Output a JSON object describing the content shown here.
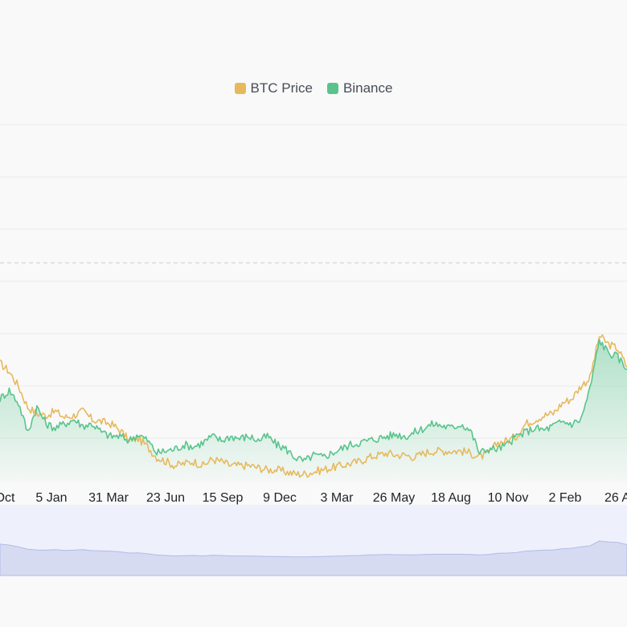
{
  "chart_data": {
    "type": "line",
    "legend": {
      "placement": "top-center",
      "entries": [
        {
          "name": "BTC Price",
          "color": "#e6b95c"
        },
        {
          "name": "Binance",
          "color": "#58c48c"
        }
      ]
    },
    "grid": true,
    "x_ticks": [
      "Oct",
      "5 Jan",
      "31 Mar",
      "23 Jun",
      "15 Sep",
      "9 Dec",
      "3 Mar",
      "26 May",
      "18 Aug",
      "10 Nov",
      "2 Feb",
      "26 A"
    ],
    "y_range": [
      0,
      100
    ],
    "series": [
      {
        "name": "BTC Price",
        "color": "#e6b95c",
        "values": [
          57,
          53,
          46,
          36,
          33,
          32,
          34,
          31,
          32,
          34,
          30,
          29,
          28,
          25,
          20,
          21,
          17,
          12,
          10,
          8,
          9,
          10,
          8,
          11,
          10,
          8,
          8,
          8,
          7,
          6,
          6,
          5,
          4,
          4,
          5,
          6,
          7,
          8,
          9,
          10,
          12,
          13,
          14,
          13,
          13,
          12,
          14,
          15,
          15,
          15,
          15,
          14,
          12,
          14,
          19,
          20,
          22,
          28,
          30,
          32,
          33,
          38,
          40,
          46,
          50,
          70,
          66,
          64,
          55
        ]
      },
      {
        "name": "Binance",
        "color": "#58c48c",
        "values": [
          40,
          44,
          38,
          24,
          36,
          28,
          26,
          28,
          30,
          27,
          28,
          24,
          22,
          22,
          20,
          23,
          20,
          14,
          15,
          16,
          18,
          17,
          19,
          22,
          20,
          22,
          21,
          22,
          20,
          22,
          18,
          16,
          12,
          10,
          13,
          12,
          14,
          16,
          18,
          19,
          20,
          21,
          22,
          23,
          22,
          24,
          26,
          28,
          27,
          26,
          28,
          25,
          14,
          16,
          16,
          18,
          22,
          24,
          26,
          25,
          27,
          29,
          28,
          30,
          45,
          68,
          62,
          60,
          54
        ]
      }
    ],
    "navigator": {
      "series_name": "BTC Price",
      "fill": "#d6dbf2"
    }
  }
}
